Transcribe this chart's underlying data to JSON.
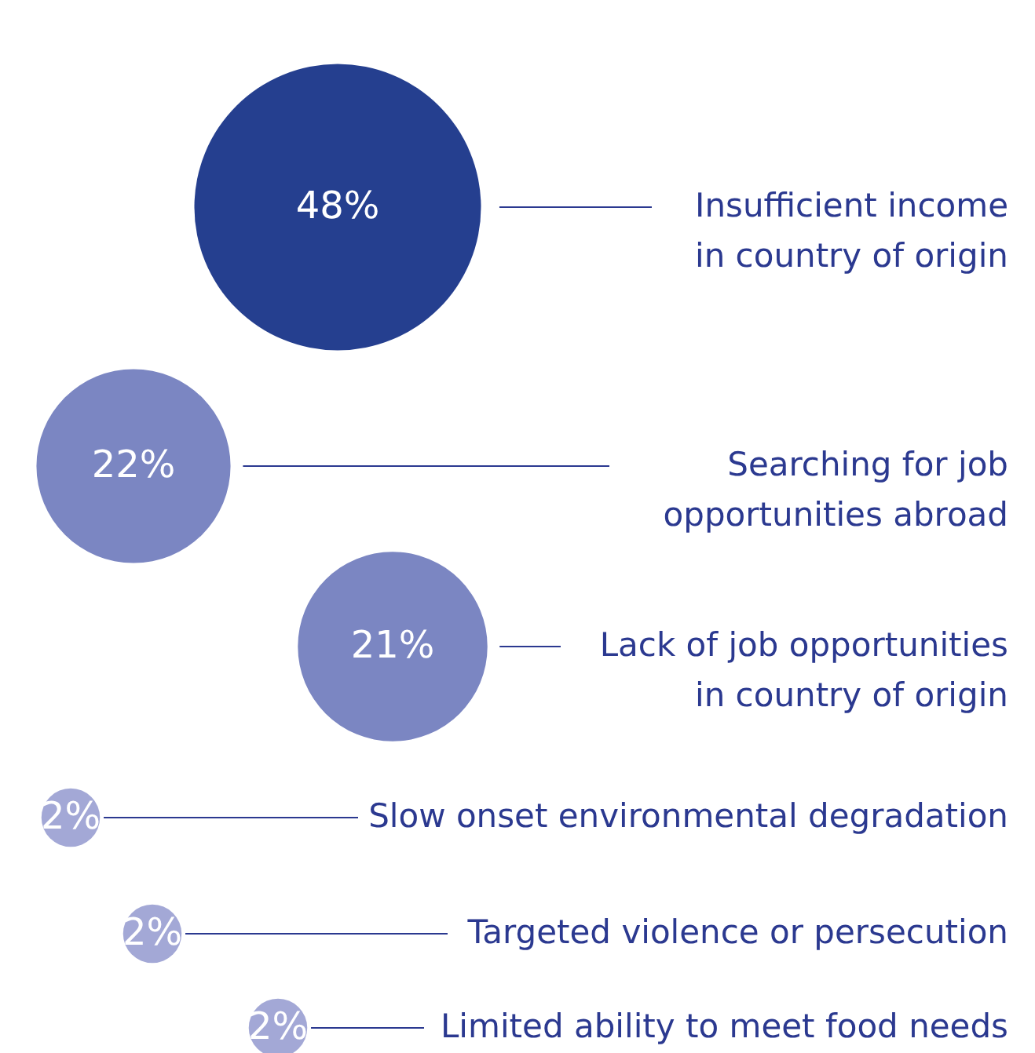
{
  "chart_data": {
    "type": "other",
    "categories": [
      "Insufficient income in country of origin",
      "Searching for job opportunities abroad",
      "Lack of job opportunities in country of origin",
      "Slow onset environmental degradation",
      "Targeted violence or persecution",
      "Limited ability to meet food needs"
    ],
    "values": [
      48,
      22,
      21,
      2,
      2,
      2
    ],
    "value_labels": [
      "48%",
      "22%",
      "21%",
      "2%",
      "2%",
      "2%"
    ],
    "colors": [
      "#253f8f",
      "#7b86c2",
      "#7b86c2",
      "#a3a8d6",
      "#a3a8d6",
      "#a3a8d6"
    ]
  }
}
